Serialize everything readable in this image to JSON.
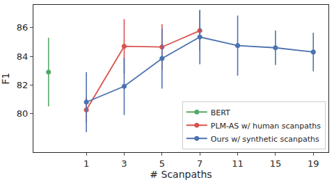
{
  "chart_data": {
    "type": "line",
    "x_label": "# Scanpaths",
    "y_label": "F1",
    "categories": [
      null,
      "1",
      "3",
      "5",
      "7",
      "11",
      "15",
      "19"
    ],
    "series": [
      {
        "name": "BERT",
        "color": "#55a868",
        "marker": "circle",
        "values": [
          82.9,
          null,
          null,
          null,
          null,
          null,
          null,
          null
        ],
        "errors": [
          2.4,
          null,
          null,
          null,
          null,
          null,
          null,
          null
        ]
      },
      {
        "name": "PLM-AS w/ human scanpaths",
        "color": "#d9534f",
        "marker": "circle",
        "values": [
          null,
          80.25,
          84.7,
          84.65,
          85.8,
          null,
          null,
          null
        ],
        "errors": [
          null,
          0.9,
          1.9,
          1.6,
          1.4,
          null,
          null,
          null
        ]
      },
      {
        "name": "Ours w/ synthetic scanpaths",
        "color": "#4c72b0",
        "marker": "circle",
        "values": [
          null,
          80.8,
          81.9,
          83.85,
          85.35,
          84.75,
          84.6,
          84.3
        ],
        "errors": [
          null,
          2.1,
          2.0,
          2.1,
          1.9,
          2.1,
          1.2,
          1.35
        ]
      }
    ],
    "ylim": [
      77.3,
      87.6
    ],
    "yticks": [
      80,
      82,
      84,
      86
    ],
    "grid": false,
    "legend": "lower right"
  }
}
